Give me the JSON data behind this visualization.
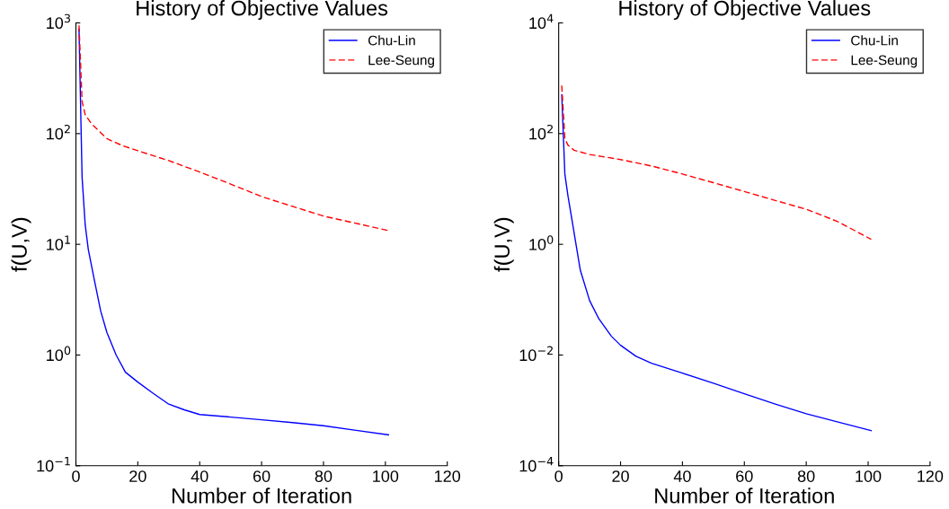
{
  "chart_data": [
    {
      "type": "line",
      "title": "History of Objective Values",
      "xlabel": "Number of Iteration",
      "ylabel": "f(U,V)",
      "log": "y",
      "legend": "top right",
      "grid": false,
      "xlim": [
        0,
        120
      ],
      "xticks": [
        0,
        20,
        40,
        60,
        80,
        100,
        120
      ],
      "ylim": [
        0.1,
        1000
      ],
      "yticks": [
        {
          "value": 0.1,
          "label": "10$^{−1}$"
        },
        {
          "value": 1,
          "label": "10$^{0}$"
        },
        {
          "value": 10,
          "label": "10$^{1}$"
        },
        {
          "value": 100,
          "label": "10$^{2}$"
        },
        {
          "value": 1000,
          "label": "10$^{3}$"
        }
      ],
      "series": [
        {
          "name": "Chu-Lin",
          "color": "#0000ff",
          "line_style": "solid",
          "x": [
            1,
            2,
            3,
            4,
            6,
            8,
            10,
            13,
            16,
            20,
            25,
            30,
            35,
            40,
            50,
            60,
            70,
            80,
            90,
            101
          ],
          "values": [
            880,
            40,
            15,
            9,
            4.7,
            2.5,
            1.6,
            1.0,
            0.7,
            0.57,
            0.45,
            0.36,
            0.32,
            0.29,
            0.275,
            0.26,
            0.245,
            0.23,
            0.21,
            0.19
          ]
        },
        {
          "name": "Lee-Seung",
          "color": "#ff0000",
          "line_style": "dashed",
          "x": [
            1,
            2,
            3,
            5,
            10,
            15,
            20,
            30,
            40,
            50,
            60,
            70,
            80,
            90,
            101
          ],
          "values": [
            950,
            195,
            148,
            123,
            90,
            78,
            70,
            57,
            45,
            35,
            27,
            22,
            18,
            15.6,
            13.3
          ]
        }
      ]
    },
    {
      "type": "line",
      "title": "History of Objective Values",
      "xlabel": "Number of Iteration",
      "ylabel": "f(U,V)",
      "log": "y",
      "legend": "top right",
      "grid": false,
      "xlim": [
        0,
        120
      ],
      "xticks": [
        0,
        20,
        40,
        60,
        80,
        100,
        120
      ],
      "ylim": [
        0.0001,
        10000
      ],
      "yticks": [
        {
          "value": 0.0001,
          "label": "10$^{−4}$"
        },
        {
          "value": 0.01,
          "label": "10$^{−2}$"
        },
        {
          "value": 1,
          "label": "10$^{0}$"
        },
        {
          "value": 100,
          "label": "10$^{2}$"
        },
        {
          "value": 10000,
          "label": "10$^{4}$"
        }
      ],
      "series": [
        {
          "name": "Chu-Lin",
          "color": "#0000ff",
          "line_style": "solid",
          "x": [
            1,
            2,
            3,
            5,
            7,
            10,
            13,
            17,
            20,
            25,
            30,
            40,
            50,
            60,
            70,
            80,
            90,
            101
          ],
          "values": [
            500,
            18.6,
            7.5,
            1.6,
            0.34,
            0.096,
            0.045,
            0.022,
            0.015,
            0.0095,
            0.0071,
            0.0047,
            0.0031,
            0.002,
            0.0013,
            0.00087,
            0.00062,
            0.00043
          ]
        },
        {
          "name": "Lee-Seung",
          "color": "#ff0000",
          "line_style": "dashed",
          "x": [
            1,
            2,
            3,
            5,
            10,
            20,
            30,
            40,
            50,
            60,
            70,
            80,
            90,
            101
          ],
          "values": [
            740,
            81,
            62,
            50,
            42,
            34,
            26,
            18.6,
            13,
            9,
            6.2,
            4.3,
            2.6,
            1.23
          ]
        }
      ]
    }
  ]
}
